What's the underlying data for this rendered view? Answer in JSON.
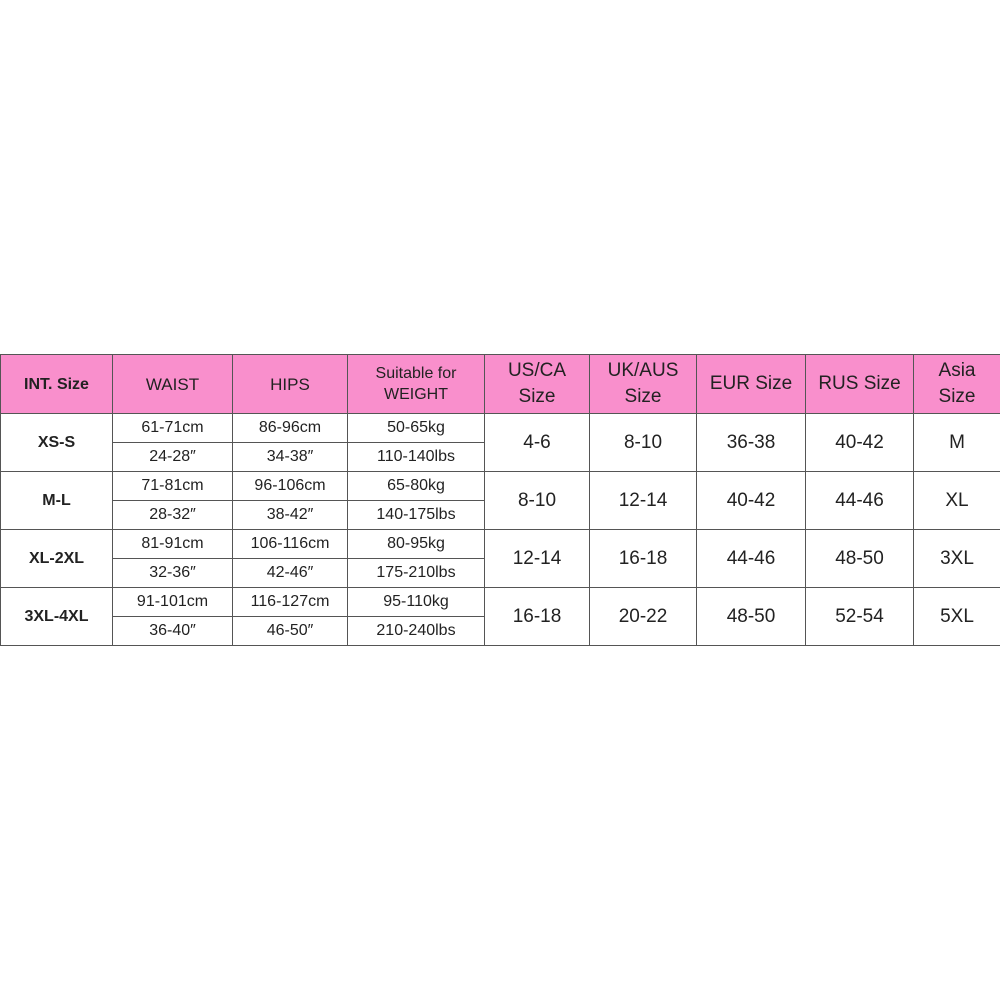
{
  "header": {
    "int_size": "INT. Size",
    "waist": "WAIST",
    "hips": "HIPS",
    "weight_line1": "Suitable for",
    "weight_line2": "WEIGHT",
    "us_line1": "US/CA",
    "us_line2": "Size",
    "uk_line1": "UK/AUS",
    "uk_line2": "Size",
    "eur": "EUR Size",
    "rus": "RUS Size",
    "asia_line1": "Asia",
    "asia_line2": "Size"
  },
  "header_color": "#f98fcc",
  "rows": [
    {
      "int": "XS-S",
      "waist_cm": "61-71cm",
      "waist_in": "24-28″",
      "hips_cm": "86-96cm",
      "hips_in": "34-38″",
      "weight_kg": "50-65kg",
      "weight_lbs": "110-140lbs",
      "us": "4-6",
      "uk": "8-10",
      "eur": "36-38",
      "rus": "40-42",
      "asia": "M"
    },
    {
      "int": "M-L",
      "waist_cm": "71-81cm",
      "waist_in": "28-32″",
      "hips_cm": "96-106cm",
      "hips_in": "38-42″",
      "weight_kg": "65-80kg",
      "weight_lbs": "140-175lbs",
      "us": "8-10",
      "uk": "12-14",
      "eur": "40-42",
      "rus": "44-46",
      "asia": "XL"
    },
    {
      "int": "XL-2XL",
      "waist_cm": "81-91cm",
      "waist_in": "32-36″",
      "hips_cm": "106-116cm",
      "hips_in": "42-46″",
      "weight_kg": "80-95kg",
      "weight_lbs": "175-210lbs",
      "us": "12-14",
      "uk": "16-18",
      "eur": "44-46",
      "rus": "48-50",
      "asia": "3XL"
    },
    {
      "int": "3XL-4XL",
      "waist_cm": "91-101cm",
      "waist_in": "36-40″",
      "hips_cm": "116-127cm",
      "hips_in": "46-50″",
      "weight_kg": "95-110kg",
      "weight_lbs": "210-240lbs",
      "us": "16-18",
      "uk": "20-22",
      "eur": "48-50",
      "rus": "52-54",
      "asia": "5XL"
    }
  ]
}
